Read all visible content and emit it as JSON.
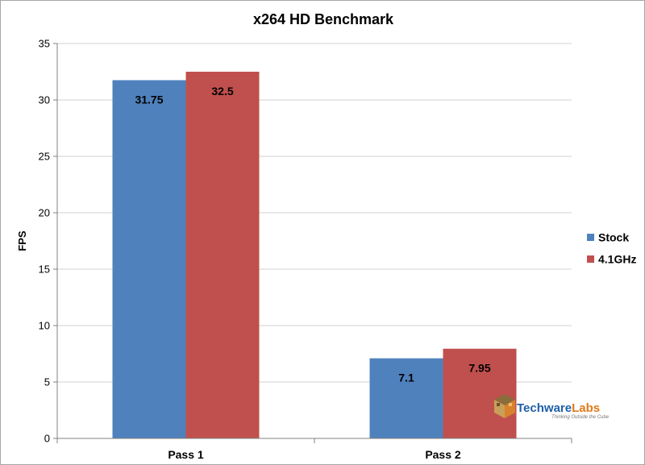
{
  "chart_data": {
    "type": "bar",
    "title": "x264 HD Benchmark",
    "ylabel": "FPS",
    "xlabel": "",
    "ylim": [
      0,
      35
    ],
    "yticks": [
      0,
      5,
      10,
      15,
      20,
      25,
      30,
      35
    ],
    "grid": true,
    "legend_position": "right",
    "categories": [
      "Pass 1",
      "Pass 2"
    ],
    "series": [
      {
        "name": "Stock",
        "values": [
          31.75,
          7.1
        ],
        "color": "#4f81bd"
      },
      {
        "name": "4.1GHz",
        "values": [
          32.5,
          7.95
        ],
        "color": "#c0504d"
      }
    ]
  },
  "watermark": {
    "brand_part1": "Techware",
    "brand_part2": "Labs",
    "tagline": "Thinking Outside the Cube",
    "color1": "#1f5fa8",
    "color2": "#e07b1a",
    "icon": "cube-logo-icon"
  }
}
